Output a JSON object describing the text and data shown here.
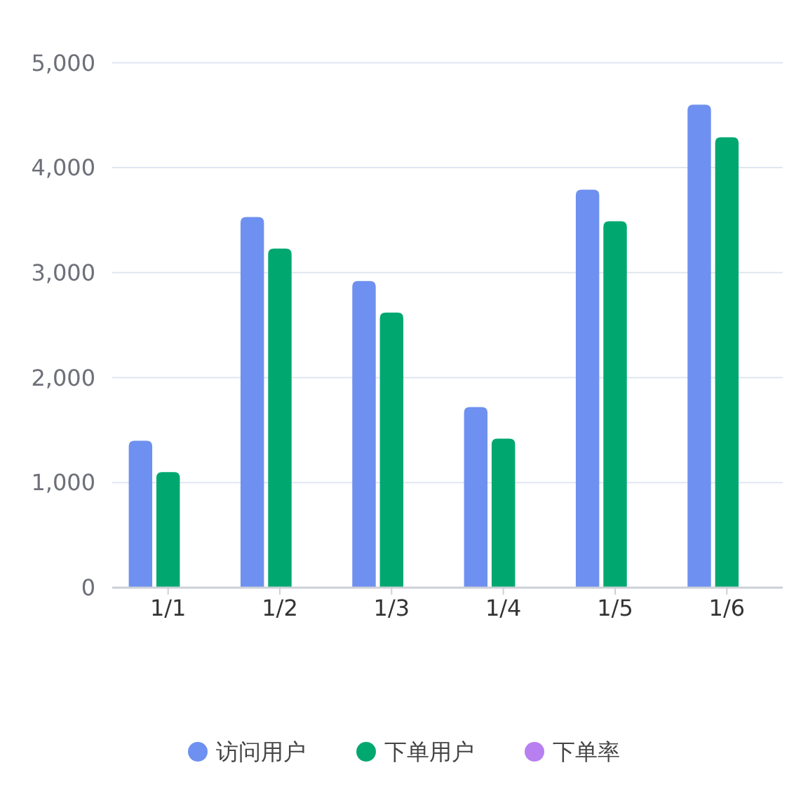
{
  "chart_data": {
    "type": "bar",
    "categories": [
      "1/1",
      "1/2",
      "1/3",
      "1/4",
      "1/5",
      "1/6"
    ],
    "series": [
      {
        "name": "访问用户",
        "color": "#6e90f0",
        "values": [
          1400,
          3530,
          2920,
          1720,
          3790,
          4600
        ]
      },
      {
        "name": "下单用户",
        "color": "#00a870",
        "values": [
          1100,
          3230,
          2620,
          1420,
          3490,
          4290
        ]
      },
      {
        "name": "下单率",
        "color": "#b77ff0",
        "values": [
          null,
          null,
          null,
          null,
          null,
          null
        ]
      }
    ],
    "ylim": [
      0,
      5000
    ],
    "yticks": [
      {
        "value": 0,
        "label": "0"
      },
      {
        "value": 1000,
        "label": "1,000"
      },
      {
        "value": 2000,
        "label": "2,000"
      },
      {
        "value": 3000,
        "label": "3,000"
      },
      {
        "value": 4000,
        "label": "4,000"
      },
      {
        "value": 5000,
        "label": "5,000"
      }
    ],
    "grid": "y",
    "legend": "bottom"
  }
}
